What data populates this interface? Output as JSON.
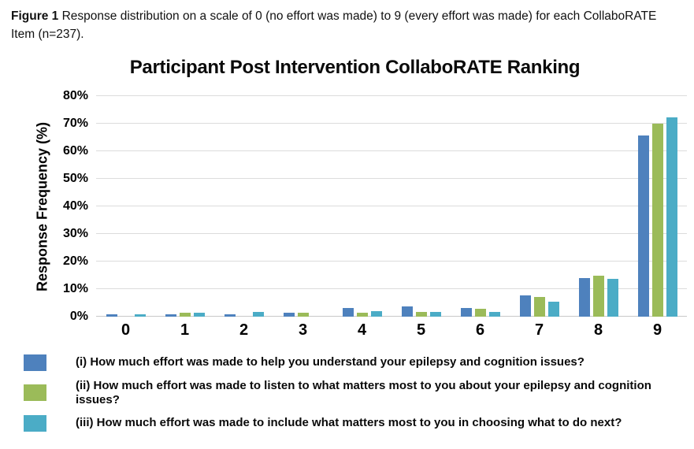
{
  "figure_caption": {
    "label": "Figure 1",
    "text": "Response distribution on a scale of 0 (no effort was made) to 9 (every effort was made) for each CollaboRATE Item (n=237)."
  },
  "chart_data": {
    "type": "bar",
    "title": "Participant Post Intervention CollaboRATE Ranking",
    "xlabel": "",
    "ylabel": "Response Frequency (%)",
    "ylim": [
      0,
      80
    ],
    "ytick_step": 10,
    "ytick_labels": [
      "0%",
      "10%",
      "20%",
      "30%",
      "40%",
      "50%",
      "60%",
      "70%",
      "80%"
    ],
    "grid": true,
    "legend_position": "bottom",
    "categories": [
      "0",
      "1",
      "2",
      "3",
      "4",
      "5",
      "6",
      "7",
      "8",
      "9"
    ],
    "series": [
      {
        "name": "(i) How much effort was made to help you understand your epilepsy and cognition issues?",
        "color": "#4E81BD",
        "values": [
          0.8,
          0.8,
          0.8,
          1.3,
          3.0,
          3.8,
          3.0,
          7.6,
          13.9,
          65.8
        ]
      },
      {
        "name": "(ii) How much effort was made to listen to what matters most to you about your epilepsy and cognition issues?",
        "color": "#9BBB59",
        "values": [
          0,
          1.3,
          0,
          1.3,
          1.4,
          1.8,
          2.9,
          7.2,
          14.8,
          70.0
        ]
      },
      {
        "name": "(iii) How much effort was made to include what matters most to you in choosing what to do next?",
        "color": "#4BACC6",
        "values": [
          0.8,
          1.3,
          1.7,
          0,
          2.1,
          1.7,
          1.8,
          5.3,
          13.8,
          72.2
        ]
      }
    ],
    "colors": {
      "gridline": "#DCDCDC",
      "baseline": "#C9C9C9"
    }
  }
}
